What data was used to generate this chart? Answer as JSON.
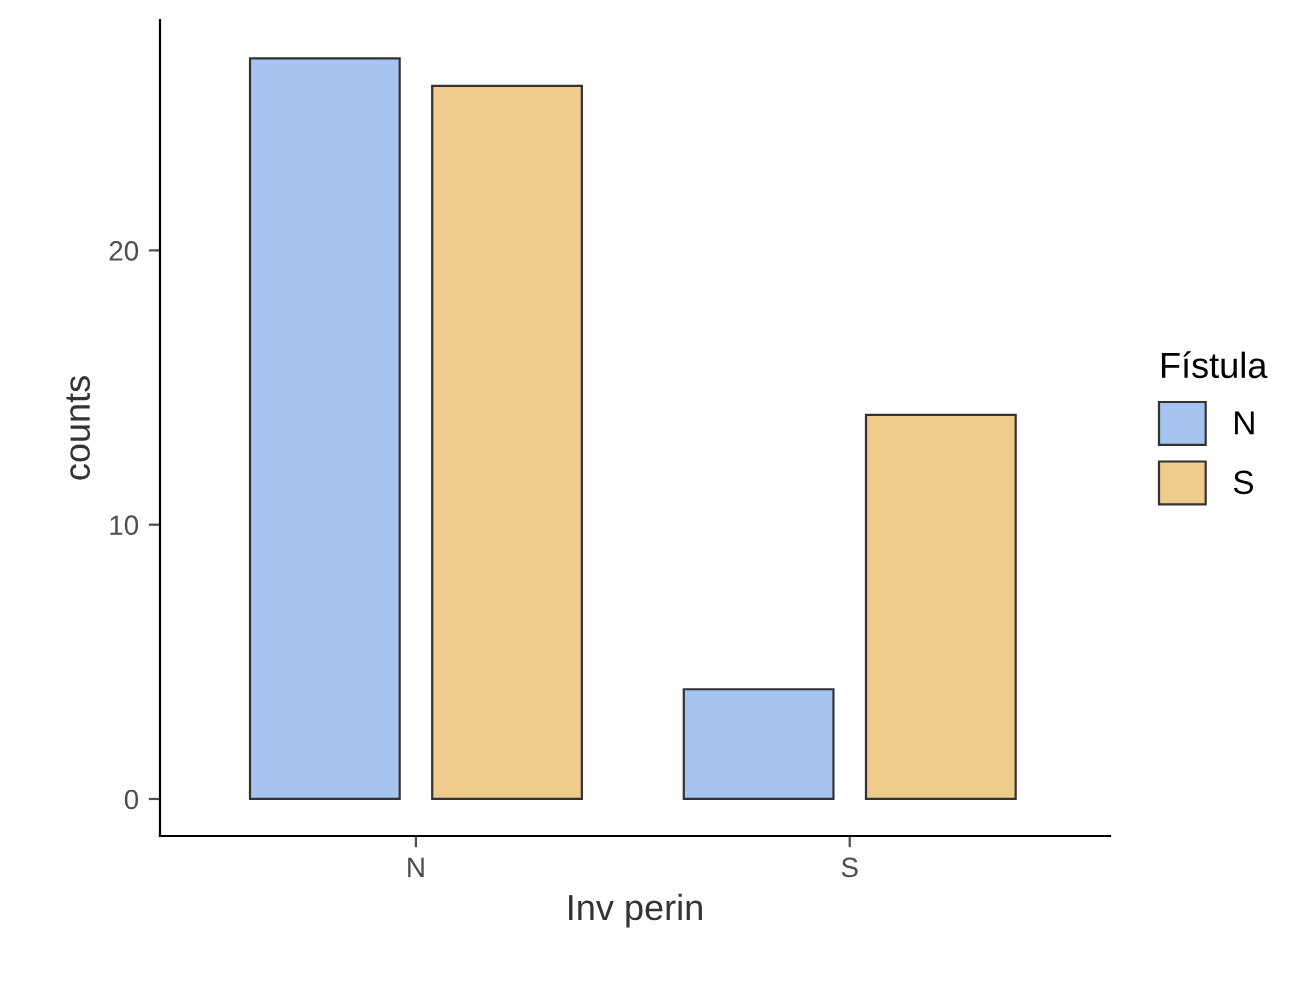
{
  "chart_data": {
    "type": "bar",
    "xlabel": "Inv perin",
    "ylabel": "counts",
    "legend_title": "Fístula",
    "categories": [
      "N",
      "S"
    ],
    "series": [
      {
        "name": "N",
        "color": "#a6c4f0",
        "values": [
          27,
          4
        ]
      },
      {
        "name": "S",
        "color": "#f0cc8c",
        "values": [
          26,
          14
        ]
      }
    ],
    "ylim": [
      -1.35,
      28.4
    ],
    "yticks": [
      0,
      10,
      20
    ],
    "grid": false,
    "legend": "right"
  }
}
